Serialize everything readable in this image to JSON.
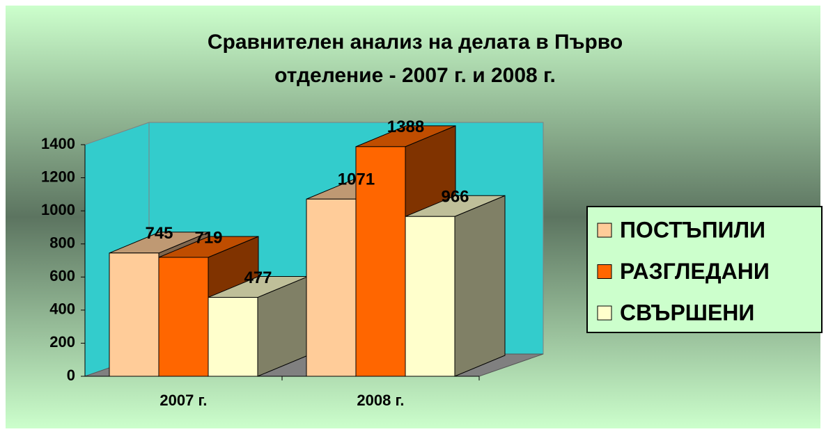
{
  "chart_data": {
    "type": "bar3d",
    "title": "Сравнителен анализ на делата в Първо",
    "subtitle": "отделение - 2007 г. и 2008 г.",
    "categories": [
      "2007 г.",
      "2008 г."
    ],
    "series": [
      {
        "name": "ПОСТЪПИЛИ",
        "color": "#ffcc99",
        "values": [
          745,
          1071
        ]
      },
      {
        "name": "РАЗГЛЕДАНИ",
        "color": "#ff6600",
        "values": [
          719,
          1388
        ]
      },
      {
        "name": "СВЪРШЕНИ",
        "color": "#ffffcc",
        "values": [
          477,
          966
        ]
      }
    ],
    "ylim": [
      0,
      1400
    ],
    "yticks": [
      0,
      200,
      400,
      600,
      800,
      1000,
      1200,
      1400
    ],
    "wall_color": "#33cccc",
    "legend": "right"
  }
}
